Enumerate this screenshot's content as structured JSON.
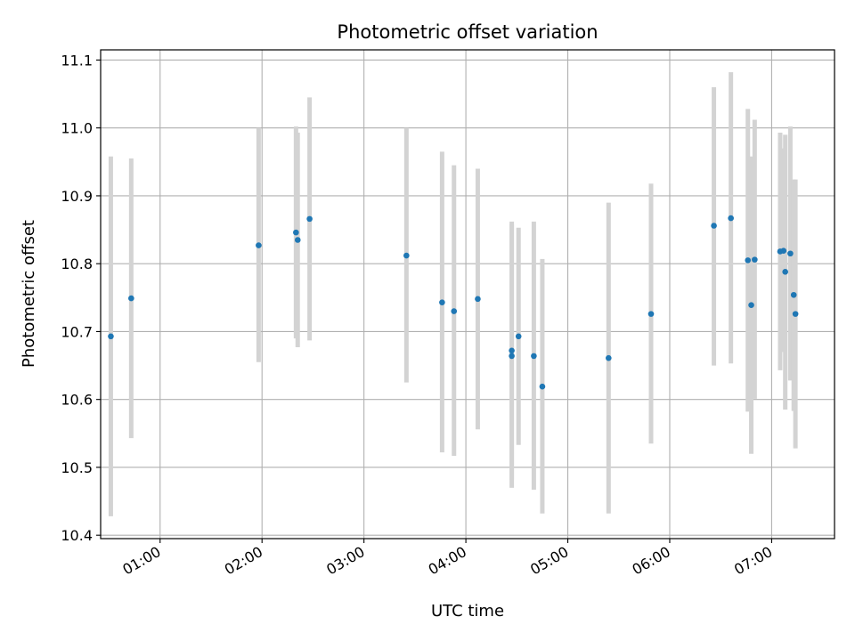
{
  "chart_data": {
    "type": "scatter",
    "title": "Photometric offset variation",
    "xlabel": "UTC time",
    "ylabel": "Photometric offset",
    "xlim": [
      "00:25",
      "07:37"
    ],
    "ylim": [
      10.395,
      11.115
    ],
    "grid": true,
    "x_ticks": [
      "01:00",
      "02:00",
      "03:00",
      "04:00",
      "05:00",
      "06:00",
      "07:00"
    ],
    "y_ticks": [
      "10.4",
      "10.5",
      "10.6",
      "10.7",
      "10.8",
      "10.9",
      "11.0",
      "11.1"
    ],
    "colors": {
      "points": "#1f77b4",
      "errorbars": "#d3d3d3",
      "grid": "#b0b0b0"
    },
    "series": [
      {
        "points": [
          {
            "x": "00:31",
            "y": 10.693,
            "yerr_low": 10.428,
            "yerr_high": 10.958
          },
          {
            "x": "00:43",
            "y": 10.749,
            "yerr_low": 10.543,
            "yerr_high": 10.955
          },
          {
            "x": "01:58",
            "y": 10.827,
            "yerr_low": 10.655,
            "yerr_high": 11.0
          },
          {
            "x": "02:20",
            "y": 10.846,
            "yerr_low": 10.69,
            "yerr_high": 11.002
          },
          {
            "x": "02:21",
            "y": 10.835,
            "yerr_low": 10.677,
            "yerr_high": 10.993
          },
          {
            "x": "02:28",
            "y": 10.866,
            "yerr_low": 10.687,
            "yerr_high": 11.045
          },
          {
            "x": "03:25",
            "y": 10.812,
            "yerr_low": 10.625,
            "yerr_high": 11.0
          },
          {
            "x": "03:46",
            "y": 10.743,
            "yerr_low": 10.522,
            "yerr_high": 10.965
          },
          {
            "x": "03:53",
            "y": 10.73,
            "yerr_low": 10.517,
            "yerr_high": 10.945
          },
          {
            "x": "04:07",
            "y": 10.748,
            "yerr_low": 10.556,
            "yerr_high": 10.94
          },
          {
            "x": "04:27",
            "y": 10.672,
            "yerr_low": 10.482,
            "yerr_high": 10.862
          },
          {
            "x": "04:27",
            "y": 10.664,
            "yerr_low": 10.47,
            "yerr_high": 10.858
          },
          {
            "x": "04:31",
            "y": 10.693,
            "yerr_low": 10.533,
            "yerr_high": 10.853
          },
          {
            "x": "04:40",
            "y": 10.664,
            "yerr_low": 10.467,
            "yerr_high": 10.862
          },
          {
            "x": "04:45",
            "y": 10.619,
            "yerr_low": 10.432,
            "yerr_high": 10.807
          },
          {
            "x": "05:24",
            "y": 10.661,
            "yerr_low": 10.432,
            "yerr_high": 10.89
          },
          {
            "x": "05:49",
            "y": 10.726,
            "yerr_low": 10.535,
            "yerr_high": 10.918
          },
          {
            "x": "06:26",
            "y": 10.856,
            "yerr_low": 10.65,
            "yerr_high": 11.06
          },
          {
            "x": "06:36",
            "y": 10.867,
            "yerr_low": 10.653,
            "yerr_high": 11.082
          },
          {
            "x": "06:46",
            "y": 10.805,
            "yerr_low": 10.582,
            "yerr_high": 11.028
          },
          {
            "x": "06:48",
            "y": 10.739,
            "yerr_low": 10.52,
            "yerr_high": 10.958
          },
          {
            "x": "06:50",
            "y": 10.806,
            "yerr_low": 10.601,
            "yerr_high": 11.012
          },
          {
            "x": "07:05",
            "y": 10.818,
            "yerr_low": 10.643,
            "yerr_high": 10.993
          },
          {
            "x": "07:07",
            "y": 10.819,
            "yerr_low": 10.67,
            "yerr_high": 10.97
          },
          {
            "x": "07:08",
            "y": 10.788,
            "yerr_low": 10.585,
            "yerr_high": 10.99
          },
          {
            "x": "07:11",
            "y": 10.815,
            "yerr_low": 10.628,
            "yerr_high": 11.002
          },
          {
            "x": "07:13",
            "y": 10.754,
            "yerr_low": 10.583,
            "yerr_high": 10.924
          },
          {
            "x": "07:14",
            "y": 10.726,
            "yerr_low": 10.528,
            "yerr_high": 10.924
          }
        ]
      }
    ]
  }
}
